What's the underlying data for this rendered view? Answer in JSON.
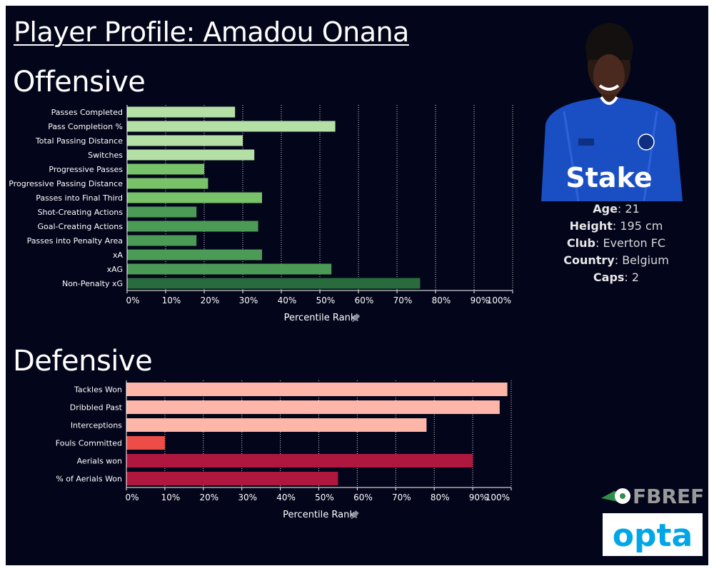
{
  "title": "Player Profile: Amadou Onana",
  "player_info": [
    {
      "label": "Age",
      "value": "21"
    },
    {
      "label": "Height",
      "value": "195 cm"
    },
    {
      "label": "Club",
      "value": "Everton FC"
    },
    {
      "label": "Country",
      "value": "Belgium"
    },
    {
      "label": "Caps",
      "value": "2"
    }
  ],
  "logos": {
    "fbref": "FBREF",
    "opta": "opta"
  },
  "shirt_sponsor": "Stake",
  "colors": {
    "background": "#03051a",
    "offensive_light": "#b4e0a6",
    "offensive_mid": "#78c26a",
    "offensive_dark": "#4b9a55",
    "offensive_darkest": "#2a6b3e",
    "defensive_light": "#fdb6a8",
    "defensive_red": "#ee4d47",
    "defensive_dark": "#b0173e"
  },
  "chart_data": [
    {
      "type": "bar",
      "orientation": "horizontal",
      "title": "Offensive",
      "xlabel": "Percentile Rank",
      "xlim": [
        0,
        100
      ],
      "ticks": [
        "0%",
        "10%",
        "20%",
        "30%",
        "40%",
        "50%",
        "60%",
        "70%",
        "80%",
        "90%",
        "100%"
      ],
      "grid": "vertical dotted",
      "categories": [
        "Passes Completed",
        "Pass Completion %",
        "Total Passing Distance",
        "Switches",
        "Progressive Passes",
        "Progressive Passing Distance",
        "Passes into Final Third",
        "Shot-Creating Actions",
        "Goal-Creating Actions",
        "Passes into Penalty Area",
        "xA",
        "xAG",
        "Non-Penalty xG"
      ],
      "values": [
        28,
        54,
        30,
        33,
        20,
        21,
        35,
        18,
        34,
        18,
        35,
        53,
        76
      ],
      "bar_colors": [
        "#b4e0a6",
        "#b4e0a6",
        "#b4e0a6",
        "#b4e0a6",
        "#78c26a",
        "#78c26a",
        "#78c26a",
        "#4b9a55",
        "#4b9a55",
        "#4b9a55",
        "#4b9a55",
        "#4b9a55",
        "#2a6b3e"
      ]
    },
    {
      "type": "bar",
      "orientation": "horizontal",
      "title": "Defensive",
      "xlabel": "Percentile Rank",
      "xlim": [
        0,
        100
      ],
      "ticks": [
        "0%",
        "10%",
        "20%",
        "30%",
        "40%",
        "50%",
        "60%",
        "70%",
        "80%",
        "90%",
        "100%"
      ],
      "grid": "vertical dotted",
      "categories": [
        "Tackles Won",
        "Dribbled Past",
        "Interceptions",
        "Fouls Committed",
        "Aerials won",
        "% of Aerials Won"
      ],
      "values": [
        99,
        97,
        78,
        10,
        90,
        55
      ],
      "bar_colors": [
        "#fdb6a8",
        "#fdb6a8",
        "#fdb6a8",
        "#ee4d47",
        "#b0173e",
        "#b0173e"
      ]
    }
  ]
}
